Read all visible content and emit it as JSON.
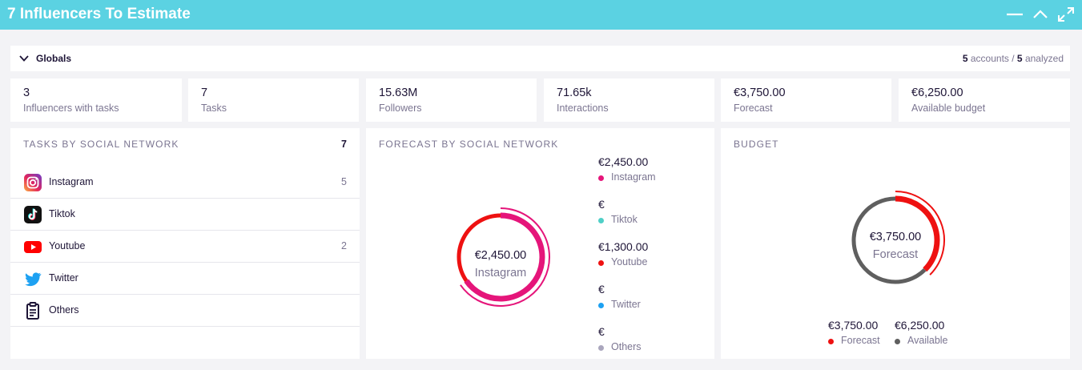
{
  "header": {
    "title": "7 Influencers To Estimate",
    "controls": [
      "minimize-icon",
      "collapse-icon",
      "expand-icon"
    ]
  },
  "globals": {
    "label": "Globals",
    "accounts": "5",
    "accounts_label": "accounts /",
    "analyzed": "5",
    "analyzed_label": "analyzed"
  },
  "kpis": [
    {
      "value": "3",
      "label": "Influencers with tasks"
    },
    {
      "value": "7",
      "label": "Tasks"
    },
    {
      "value": "15.63M",
      "label": "Followers"
    },
    {
      "value": "71.65k",
      "label": "Interactions"
    },
    {
      "value": "€3,750.00",
      "label": "Forecast"
    },
    {
      "value": "€6,250.00",
      "label": "Available budget"
    }
  ],
  "tasks_panel": {
    "title": "TASKS BY SOCIAL NETWORK",
    "total": "7",
    "networks": [
      {
        "name": "Instagram",
        "count": "5",
        "icon": "instagram-icon"
      },
      {
        "name": "Tiktok",
        "count": "",
        "icon": "tiktok-icon"
      },
      {
        "name": "Youtube",
        "count": "2",
        "icon": "youtube-icon"
      },
      {
        "name": "Twitter",
        "count": "",
        "icon": "twitter-icon"
      },
      {
        "name": "Others",
        "count": "",
        "icon": "clipboard-icon"
      }
    ]
  },
  "forecast_panel": {
    "title": "FORECAST BY SOCIAL NETWORK",
    "center_value": "€2,450.00",
    "center_label": "Instagram",
    "legend": [
      {
        "amount": "€2,450.00",
        "name": "Instagram",
        "color": "#e5157a"
      },
      {
        "amount": "€",
        "name": "Tiktok",
        "color": "#4fcfc7"
      },
      {
        "amount": "€1,300.00",
        "name": "Youtube",
        "color": "#ee1111"
      },
      {
        "amount": "€",
        "name": "Twitter",
        "color": "#1da1f2"
      },
      {
        "amount": "€",
        "name": "Others",
        "color": "#aaa6bd"
      }
    ]
  },
  "budget_panel": {
    "title": "BUDGET",
    "center_value": "€3,750.00",
    "center_label": "Forecast",
    "legend": [
      {
        "amount": "€3,750.00",
        "name": "Forecast",
        "color": "#ee1111"
      },
      {
        "amount": "€6,250.00",
        "name": "Available",
        "color": "#5f5f5f"
      }
    ]
  },
  "chart_data": [
    {
      "type": "pie",
      "title": "FORECAST BY SOCIAL NETWORK",
      "categories": [
        "Instagram",
        "Tiktok",
        "Youtube",
        "Twitter",
        "Others"
      ],
      "values": [
        2450,
        0,
        1300,
        0,
        0
      ],
      "colors": [
        "#e5157a",
        "#4fcfc7",
        "#ee1111",
        "#1da1f2",
        "#aaa6bd"
      ],
      "highlighted": "Instagram"
    },
    {
      "type": "pie",
      "title": "BUDGET",
      "categories": [
        "Forecast",
        "Available"
      ],
      "values": [
        3750,
        6250
      ],
      "colors": [
        "#ee1111",
        "#5f5f5f"
      ],
      "highlighted": "Forecast"
    }
  ]
}
